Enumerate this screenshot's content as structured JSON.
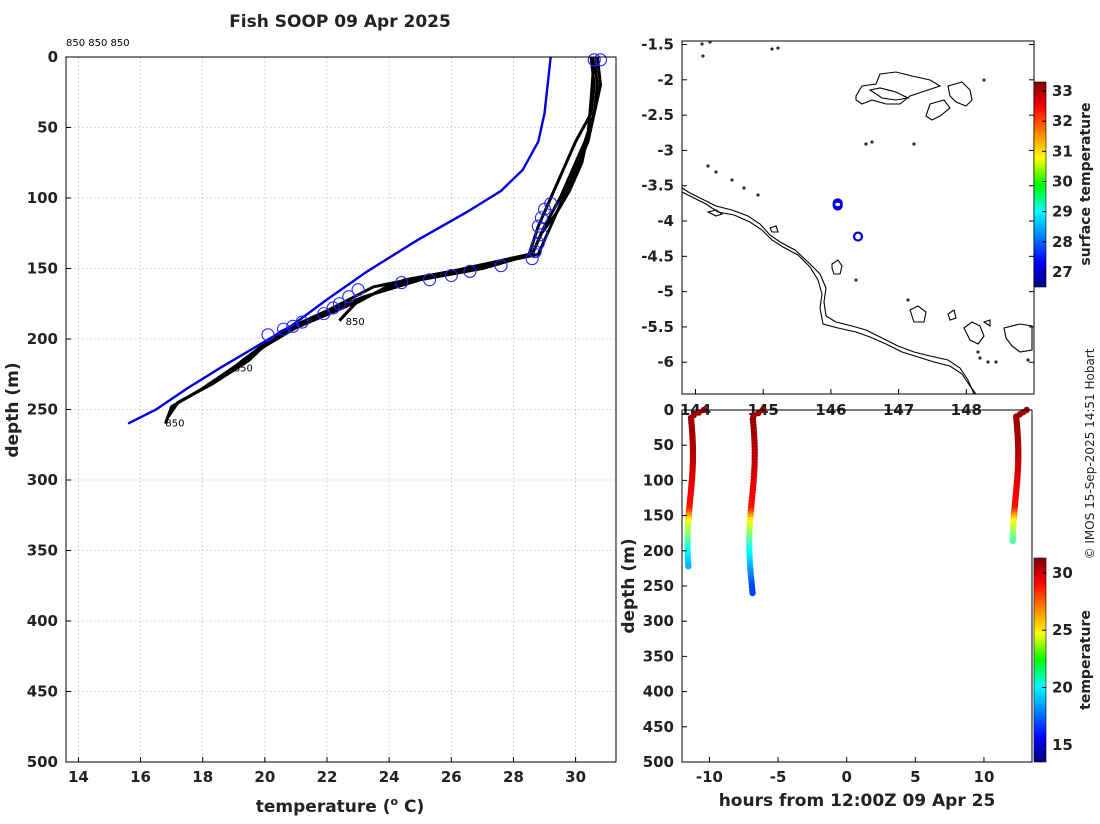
{
  "chart_data": [
    {
      "id": "profile",
      "type": "line",
      "title": "Fish SOOP 09 Apr 2025",
      "header_labels": "850 850 850",
      "xlabel_prefix": "temperature (",
      "xlabel_sup": "o",
      "xlabel_suffix": " C)",
      "ylabel": "depth (m)",
      "xlim": [
        13.6,
        31.3
      ],
      "ylim": [
        500,
        0
      ],
      "xticks": [
        "14",
        "16",
        "18",
        "20",
        "22",
        "24",
        "26",
        "28",
        "30"
      ],
      "yticks": [
        "0",
        "50",
        "100",
        "150",
        "200",
        "250",
        "300",
        "350",
        "400",
        "450",
        "500"
      ],
      "climatology": {
        "name": "climatology",
        "color": "#0000dd",
        "points": [
          [
            29.2,
            0
          ],
          [
            29.1,
            20
          ],
          [
            29.0,
            40
          ],
          [
            28.8,
            60
          ],
          [
            28.3,
            80
          ],
          [
            27.6,
            95
          ],
          [
            26.5,
            110
          ],
          [
            24.9,
            130
          ],
          [
            23.3,
            152
          ],
          [
            22.0,
            172
          ],
          [
            20.9,
            190
          ],
          [
            19.6,
            207
          ],
          [
            18.6,
            220
          ],
          [
            17.5,
            235
          ],
          [
            16.5,
            250
          ],
          [
            15.6,
            260
          ]
        ]
      },
      "drops": [
        {
          "name": "drop-1",
          "label": "850",
          "label_at": [
            22.6,
            190
          ],
          "points": [
            [
              30.6,
              0
            ],
            [
              30.7,
              20
            ],
            [
              30.6,
              40
            ],
            [
              30.3,
              60
            ],
            [
              29.9,
              80
            ],
            [
              29.5,
              100
            ],
            [
              29.0,
              120
            ],
            [
              28.6,
              140
            ],
            [
              26.5,
              150
            ],
            [
              24.0,
              162
            ],
            [
              22.9,
              175
            ],
            [
              22.4,
              187
            ]
          ]
        },
        {
          "name": "drop-2",
          "label": "850",
          "label_at": [
            19.0,
            223
          ],
          "points": [
            [
              30.5,
              0
            ],
            [
              30.6,
              20
            ],
            [
              30.5,
              40
            ],
            [
              30.0,
              60
            ],
            [
              29.6,
              80
            ],
            [
              29.2,
              100
            ],
            [
              28.8,
              120
            ],
            [
              28.5,
              140
            ],
            [
              26.0,
              152
            ],
            [
              23.5,
              163
            ],
            [
              22.0,
              180
            ],
            [
              20.5,
              195
            ],
            [
              19.9,
              205
            ],
            [
              19.3,
              215
            ],
            [
              18.9,
              222
            ]
          ]
        },
        {
          "name": "drop-3",
          "label": "850",
          "label_at": [
            16.8,
            262
          ],
          "points": [
            [
              30.7,
              0
            ],
            [
              30.8,
              20
            ],
            [
              30.6,
              40
            ],
            [
              30.4,
              60
            ],
            [
              30.0,
              80
            ],
            [
              29.6,
              100
            ],
            [
              29.2,
              120
            ],
            [
              28.8,
              140
            ],
            [
              27.0,
              148
            ],
            [
              24.5,
              158
            ],
            [
              22.5,
              178
            ],
            [
              21.0,
              192
            ],
            [
              20.0,
              205
            ],
            [
              19.0,
              220
            ],
            [
              18.0,
              235
            ],
            [
              17.0,
              248
            ],
            [
              16.8,
              260
            ]
          ]
        },
        {
          "name": "drop-4",
          "label": "",
          "label_at": null,
          "points": [
            [
              30.6,
              0
            ],
            [
              30.5,
              30
            ],
            [
              30.4,
              55
            ],
            [
              30.2,
              75
            ],
            [
              29.8,
              95
            ],
            [
              29.4,
              110
            ],
            [
              28.9,
              125
            ],
            [
              28.6,
              140
            ],
            [
              27.0,
              150
            ],
            [
              25.0,
              158
            ],
            [
              23.2,
              170
            ],
            [
              21.5,
              185
            ],
            [
              20.2,
              200
            ],
            [
              19.5,
              215
            ],
            [
              18.3,
              232
            ],
            [
              17.2,
              245
            ],
            [
              16.9,
              255
            ]
          ]
        }
      ],
      "markers": [
        [
          30.6,
          2
        ],
        [
          30.8,
          2
        ],
        [
          29.2,
          104
        ],
        [
          29.0,
          108
        ],
        [
          28.9,
          114
        ],
        [
          28.8,
          120
        ],
        [
          28.9,
          126
        ],
        [
          28.8,
          132
        ],
        [
          28.7,
          138
        ],
        [
          28.6,
          143
        ],
        [
          27.6,
          148
        ],
        [
          26.6,
          152
        ],
        [
          26.0,
          155
        ],
        [
          25.3,
          158
        ],
        [
          24.4,
          160
        ],
        [
          23.0,
          165
        ],
        [
          22.7,
          170
        ],
        [
          22.4,
          175
        ],
        [
          22.2,
          178
        ],
        [
          21.9,
          182
        ],
        [
          21.2,
          188
        ],
        [
          20.9,
          191
        ],
        [
          20.6,
          193
        ],
        [
          20.1,
          197
        ]
      ]
    },
    {
      "id": "map",
      "type": "scatter",
      "title": "",
      "colorbar_label": "surface temperature",
      "colorbar_ticks": [
        "27",
        "28",
        "29",
        "30",
        "31",
        "32",
        "33"
      ],
      "colorbar_range": [
        26.5,
        33.3
      ],
      "xlim": [
        143.8,
        149.0
      ],
      "ylim": [
        -6.45,
        -1.45
      ],
      "xticks": [
        "144",
        "145",
        "146",
        "147",
        "148"
      ],
      "yticks": [
        "-1.5",
        "-2",
        "-2.5",
        "-3",
        "-3.5",
        "-4",
        "-4.5",
        "-5",
        "-5.5",
        "-6"
      ],
      "points": [
        [
          146.1,
          -3.75
        ],
        [
          146.1,
          -3.78
        ],
        [
          146.4,
          -4.22
        ]
      ],
      "marker_color": "#0000dd"
    },
    {
      "id": "section",
      "type": "scatter",
      "xlabel": "hours from 12:00Z 09 Apr 25",
      "ylabel": "depth (m)",
      "colorbar_label": "temperature",
      "colorbar_ticks": [
        "15",
        "20",
        "25",
        "30"
      ],
      "colorbar_range": [
        13.5,
        31.3
      ],
      "xlim": [
        -12,
        13.5
      ],
      "ylim": [
        500,
        0
      ],
      "xticks": [
        "-10",
        "-5",
        "0",
        "5",
        "10"
      ],
      "yticks": [
        "0",
        "50",
        "100",
        "150",
        "200",
        "250",
        "300",
        "350",
        "400",
        "450",
        "500"
      ],
      "casts": [
        {
          "hour": -11.4,
          "hour_end": -10.3,
          "max_depth": 222
        },
        {
          "hour": -6.9,
          "hour_end": -6.0,
          "max_depth": 260
        },
        {
          "hour": 12.3,
          "hour_end": 13.2,
          "max_depth": 186
        }
      ]
    }
  ],
  "footer": "© IMOS 15-Sep-2025 14:51 Hobart"
}
